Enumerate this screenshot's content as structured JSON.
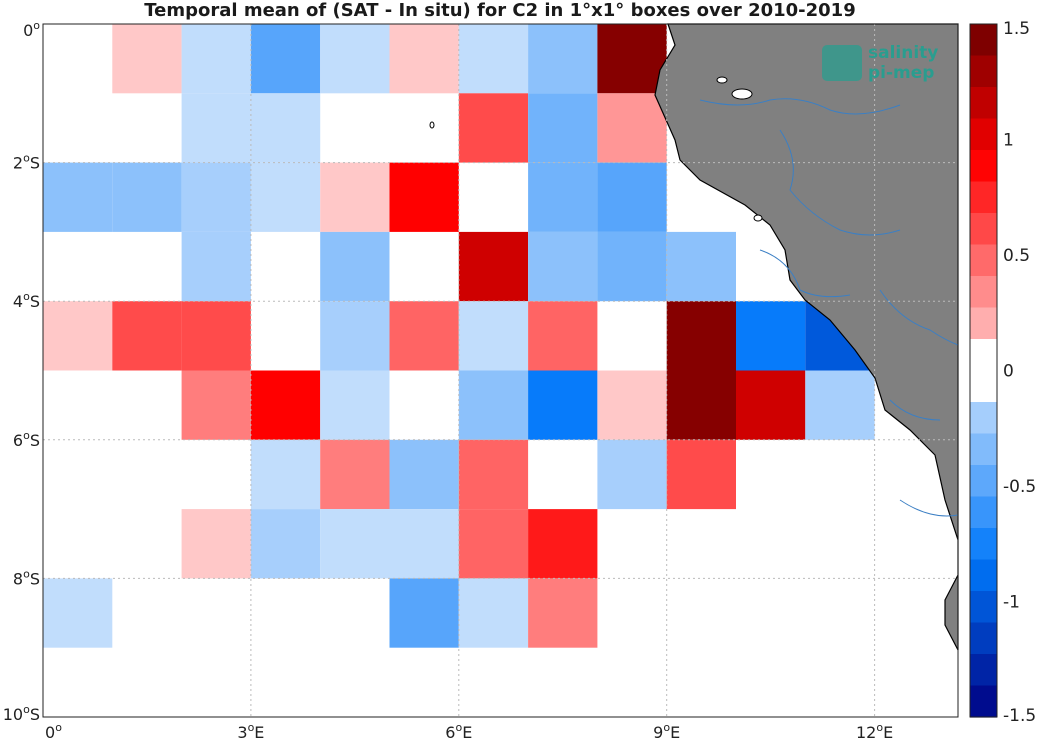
{
  "title": "Temporal mean of (SAT - In situ) for C2 in 1°x1° boxes over 2010-2019",
  "logo": {
    "line1": "salinity",
    "line2": "pi-mep",
    "color": "#2a9d8f"
  },
  "colors": {
    "land": "#808080",
    "river": "#3b7fc4",
    "coast": "#000000",
    "grid": "#bbbbbb"
  },
  "chart_data": {
    "type": "heatmap",
    "title": "Temporal mean of (SAT - In situ) for C2 in 1°x1° boxes over 2010-2019",
    "x_range_deg": [
      0,
      13.2
    ],
    "y_range_deg": [
      0,
      -10
    ],
    "x_ticks": [
      {
        "value": 0,
        "num": "0",
        "unit": ""
      },
      {
        "value": 3,
        "num": "3",
        "unit": "E"
      },
      {
        "value": 6,
        "num": "6",
        "unit": "E"
      },
      {
        "value": 9,
        "num": "9",
        "unit": "E"
      },
      {
        "value": 12,
        "num": "12",
        "unit": "E"
      }
    ],
    "y_ticks": [
      {
        "value": 0,
        "num": "0",
        "unit": ""
      },
      {
        "value": -2,
        "num": "2",
        "unit": "S"
      },
      {
        "value": -4,
        "num": "4",
        "unit": "S"
      },
      {
        "value": -6,
        "num": "6",
        "unit": "S"
      },
      {
        "value": -8,
        "num": "8",
        "unit": "S"
      },
      {
        "value": -10,
        "num": "10",
        "unit": "S"
      }
    ],
    "grid": true,
    "colorbar": {
      "range": [
        -1.5,
        1.5
      ],
      "ticks": [
        "1.5",
        "1",
        "0.5",
        "0",
        "-0.5",
        "-1",
        "-1.5"
      ],
      "tick_values": [
        1.5,
        1,
        0.5,
        0,
        -0.5,
        -1,
        -1.5
      ],
      "levels": 22
    },
    "cells": [
      {
        "lon": 1,
        "lat": 0,
        "value": 0.1
      },
      {
        "lon": 2,
        "lat": 0,
        "value": -0.1
      },
      {
        "lon": 3,
        "lat": 0,
        "value": -0.5
      },
      {
        "lon": 4,
        "lat": 0,
        "value": -0.1
      },
      {
        "lon": 5,
        "lat": 0,
        "value": 0.1
      },
      {
        "lon": 6,
        "lat": 0,
        "value": -0.1
      },
      {
        "lon": 7,
        "lat": 0,
        "value": -0.3
      },
      {
        "lon": 8,
        "lat": 0,
        "value": 1.4
      },
      {
        "lon": 2,
        "lat": -1,
        "value": -0.1
      },
      {
        "lon": 3,
        "lat": -1,
        "value": -0.1
      },
      {
        "lon": 6,
        "lat": -1,
        "value": 0.6
      },
      {
        "lon": 7,
        "lat": -1,
        "value": -0.4
      },
      {
        "lon": 8,
        "lat": -1,
        "value": 0.3
      },
      {
        "lon": 0,
        "lat": -2,
        "value": -0.3
      },
      {
        "lon": 1,
        "lat": -2,
        "value": -0.3
      },
      {
        "lon": 2,
        "lat": -2,
        "value": -0.2
      },
      {
        "lon": 3,
        "lat": -2,
        "value": -0.1
      },
      {
        "lon": 4,
        "lat": -2,
        "value": 0.1
      },
      {
        "lon": 5,
        "lat": -2,
        "value": 0.9
      },
      {
        "lon": 7,
        "lat": -2,
        "value": -0.4
      },
      {
        "lon": 8,
        "lat": -2,
        "value": -0.5
      },
      {
        "lon": 2,
        "lat": -3,
        "value": -0.2
      },
      {
        "lon": 4,
        "lat": -3,
        "value": -0.3
      },
      {
        "lon": 6,
        "lat": -3,
        "value": 1.1
      },
      {
        "lon": 7,
        "lat": -3,
        "value": -0.3
      },
      {
        "lon": 8,
        "lat": -3,
        "value": -0.4
      },
      {
        "lon": 9,
        "lat": -3,
        "value": -0.3
      },
      {
        "lon": 0,
        "lat": -4,
        "value": 0.1
      },
      {
        "lon": 1,
        "lat": -4,
        "value": 0.6
      },
      {
        "lon": 2,
        "lat": -4,
        "value": 0.6
      },
      {
        "lon": 4,
        "lat": -4,
        "value": -0.2
      },
      {
        "lon": 5,
        "lat": -4,
        "value": 0.5
      },
      {
        "lon": 6,
        "lat": -4,
        "value": -0.1
      },
      {
        "lon": 7,
        "lat": -4,
        "value": 0.5
      },
      {
        "lon": 9,
        "lat": -4,
        "value": 1.4
      },
      {
        "lon": 10,
        "lat": -4,
        "value": -0.8
      },
      {
        "lon": 11,
        "lat": -4,
        "value": -1.0
      },
      {
        "lon": 2,
        "lat": -5,
        "value": 0.4
      },
      {
        "lon": 3,
        "lat": -5,
        "value": 0.9
      },
      {
        "lon": 4,
        "lat": -5,
        "value": -0.1
      },
      {
        "lon": 6,
        "lat": -5,
        "value": -0.3
      },
      {
        "lon": 7,
        "lat": -5,
        "value": -0.8
      },
      {
        "lon": 8,
        "lat": -5,
        "value": 0.1
      },
      {
        "lon": 9,
        "lat": -5,
        "value": 1.4
      },
      {
        "lon": 10,
        "lat": -5,
        "value": 1.1
      },
      {
        "lon": 11,
        "lat": -5,
        "value": -0.2
      },
      {
        "lon": 3,
        "lat": -6,
        "value": -0.1
      },
      {
        "lon": 4,
        "lat": -6,
        "value": 0.4
      },
      {
        "lon": 5,
        "lat": -6,
        "value": -0.3
      },
      {
        "lon": 6,
        "lat": -6,
        "value": 0.5
      },
      {
        "lon": 8,
        "lat": -6,
        "value": -0.2
      },
      {
        "lon": 9,
        "lat": -6,
        "value": 0.6
      },
      {
        "lon": 2,
        "lat": -7,
        "value": 0.1
      },
      {
        "lon": 3,
        "lat": -7,
        "value": -0.2
      },
      {
        "lon": 4,
        "lat": -7,
        "value": -0.1
      },
      {
        "lon": 5,
        "lat": -7,
        "value": -0.1
      },
      {
        "lon": 6,
        "lat": -7,
        "value": 0.5
      },
      {
        "lon": 7,
        "lat": -7,
        "value": 0.8
      },
      {
        "lon": 0,
        "lat": -8,
        "value": -0.1
      },
      {
        "lon": 5,
        "lat": -8,
        "value": -0.5
      },
      {
        "lon": 6,
        "lat": -8,
        "value": -0.1
      },
      {
        "lon": 7,
        "lat": -8,
        "value": 0.4
      }
    ]
  }
}
